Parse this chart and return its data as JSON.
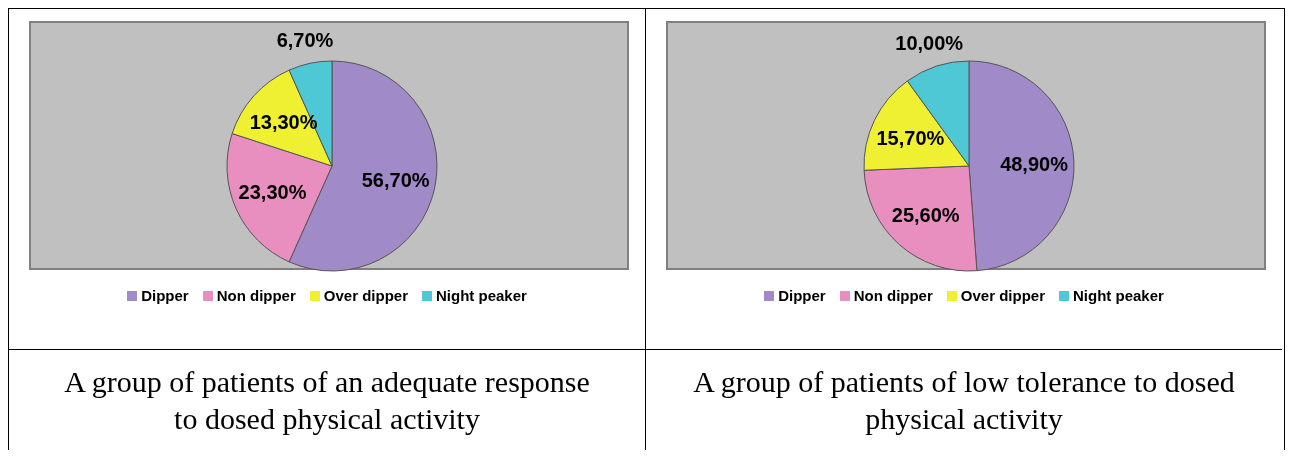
{
  "chart_data": [
    {
      "type": "pie",
      "title": "A group of patients of an adequate response to dosed physical activity",
      "categories": [
        "Dipper",
        "Non dipper",
        "Over dipper",
        "Night peaker"
      ],
      "values": [
        56.7,
        23.3,
        13.3,
        6.7
      ],
      "colors": [
        "#a08ac8",
        "#e98fc0",
        "#f0f032",
        "#4fc8d6"
      ],
      "value_labels": [
        "56,70%",
        "23,30%",
        "13,30%",
        "6,70%"
      ],
      "legend": "bottom"
    },
    {
      "type": "pie",
      "title": "A group of patients of low tolerance to dosed physical activity",
      "categories": [
        "Dipper",
        "Non dipper",
        "Over dipper",
        "Night peaker"
      ],
      "values": [
        48.9,
        25.6,
        15.7,
        10.0
      ],
      "colors": [
        "#a08ac8",
        "#e98fc0",
        "#f0f032",
        "#4fc8d6"
      ],
      "value_labels": [
        "48,90%",
        "25,60%",
        "15,70%",
        "10,00%"
      ],
      "legend": "bottom"
    }
  ]
}
